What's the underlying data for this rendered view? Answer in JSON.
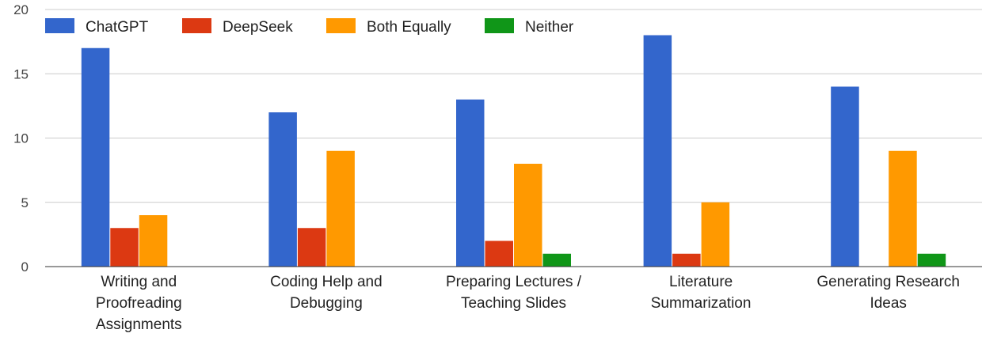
{
  "chart_data": {
    "type": "bar",
    "title": "",
    "xlabel": "",
    "ylabel": "",
    "ylim": [
      0,
      20
    ],
    "yticks": [
      0,
      5,
      10,
      15,
      20
    ],
    "grid": true,
    "legend_position": "top-left",
    "categories": [
      [
        "Writing and",
        "Proofreading",
        "Assignments"
      ],
      [
        "Coding Help and",
        "Debugging"
      ],
      [
        "Preparing Lectures /",
        "Teaching Slides"
      ],
      [
        "Literature",
        "Summarization"
      ],
      [
        "Generating Research",
        "Ideas"
      ]
    ],
    "series": [
      {
        "name": "ChatGPT",
        "color": "#3366cc",
        "values": [
          17,
          12,
          13,
          18,
          14
        ]
      },
      {
        "name": "DeepSeek",
        "color": "#dc3912",
        "values": [
          3,
          3,
          2,
          1,
          0
        ]
      },
      {
        "name": "Both Equally",
        "color": "#ff9900",
        "values": [
          4,
          9,
          8,
          5,
          9
        ]
      },
      {
        "name": "Neither",
        "color": "#109618",
        "values": [
          0,
          0,
          1,
          0,
          1
        ]
      }
    ]
  }
}
